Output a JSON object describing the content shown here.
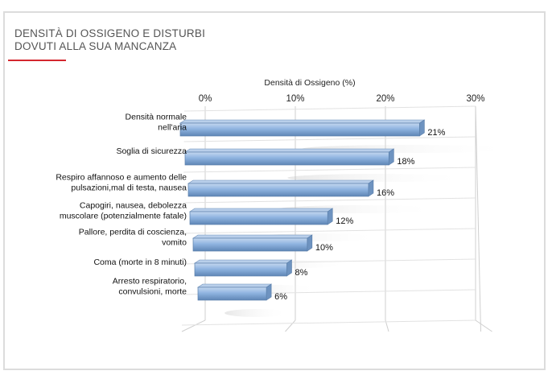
{
  "card": {
    "title_line1": "DENSITÀ DI OSSIGENO E DISTURBI",
    "title_line2": "DOVUTI ALLA SUA MANCANZA",
    "accent_color": "#d4272e"
  },
  "chart_data": {
    "type": "bar",
    "orientation": "horizontal",
    "xlabel": "Densità di Ossigeno (%)",
    "xlim": [
      0,
      30
    ],
    "ticks": [
      0,
      10,
      20,
      30
    ],
    "tick_labels": [
      "0%",
      "10%",
      "20%",
      "30%"
    ],
    "grid": true,
    "bar_color": "#8fb4e0",
    "categories": [
      [
        "Densità normale",
        "nell'aria"
      ],
      [
        "Soglia di sicurezza"
      ],
      [
        "Respiro affannoso e aumento delle",
        "pulsazioni,mal di testa, nausea"
      ],
      [
        "Capogiri, nausea, debolezza",
        "muscolare (potenzialmente fatale)"
      ],
      [
        "Pallore, perdita di coscienza,",
        "vomito"
      ],
      [
        "Coma (morte in 8 minuti)"
      ],
      [
        "Arresto respiratorio,",
        "convulsioni, morte"
      ]
    ],
    "values": [
      21,
      18,
      16,
      12,
      10,
      8,
      6
    ],
    "value_labels": [
      "21%",
      "18%",
      "16%",
      "12%",
      "10%",
      "8%",
      "6%"
    ]
  }
}
